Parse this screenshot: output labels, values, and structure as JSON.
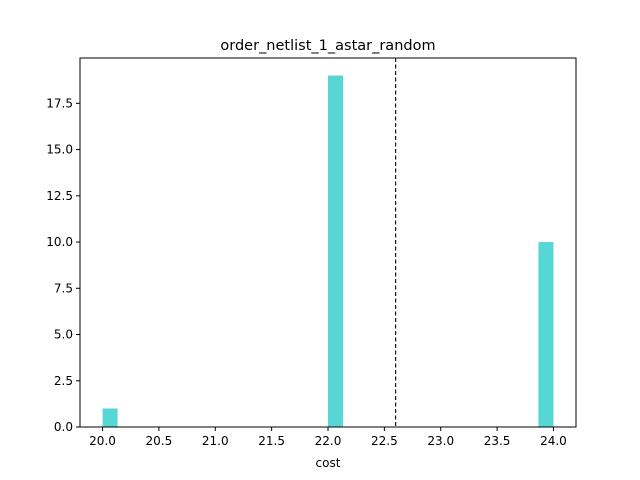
{
  "chart_data": {
    "type": "bar",
    "title": "order_netlist_1_astar_random",
    "xlabel": "cost",
    "ylabel": "",
    "xlim": [
      19.8,
      24.2
    ],
    "ylim": [
      0,
      19.95
    ],
    "bin_width": 0.13333,
    "bars": [
      {
        "x": 20.0,
        "value": 1
      },
      {
        "x": 22.0,
        "value": 19
      },
      {
        "x": 23.8667,
        "value": 10
      }
    ],
    "mean_line_x": 22.6,
    "x_ticks": [
      "20.0",
      "20.5",
      "21.0",
      "21.5",
      "22.0",
      "22.5",
      "23.0",
      "23.5",
      "24.0"
    ],
    "y_ticks": [
      "0.0",
      "2.5",
      "5.0",
      "7.5",
      "10.0",
      "12.5",
      "15.0",
      "17.5"
    ],
    "bar_color": "#56d6d4",
    "grid": false,
    "legend": "none"
  }
}
